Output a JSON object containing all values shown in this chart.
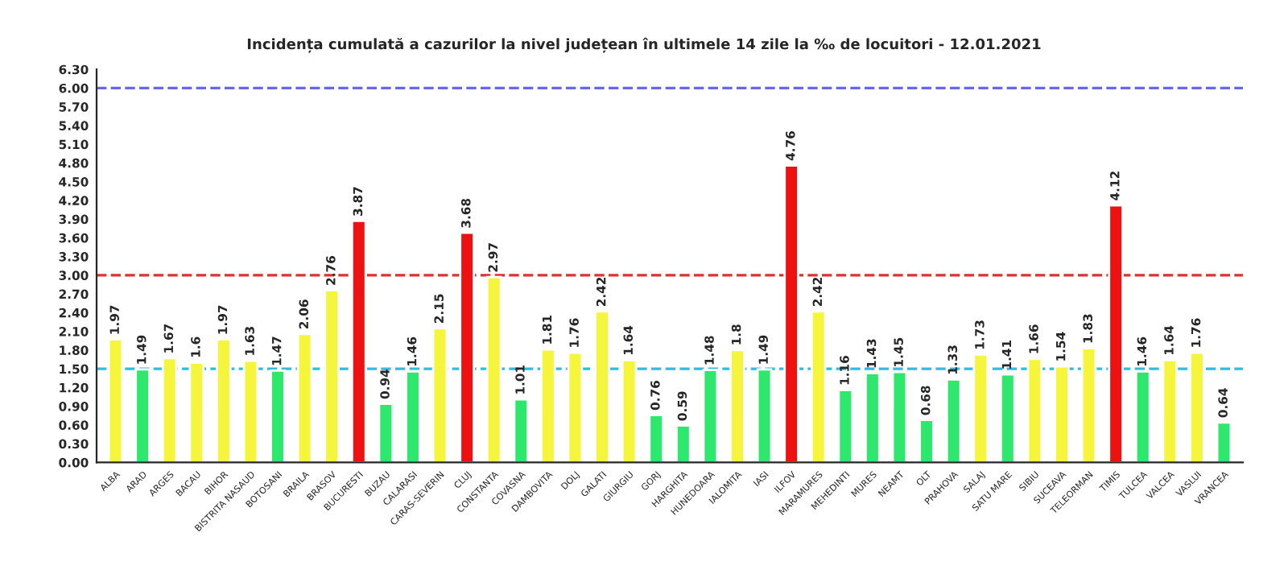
{
  "chart_data": {
    "type": "bar",
    "title": "Incidența cumulată a cazurilor la nivel județean în ultimele 14 zile la ‰ de locuitori - 12.01.2021",
    "categories": [
      "ALBA",
      "ARAD",
      "ARGES",
      "BACAU",
      "BIHOR",
      "BISTRITA NASAUD",
      "BOTOSANI",
      "BRAILA",
      "BRASOV",
      "BUCURESTI",
      "BUZAU",
      "CALARASI",
      "CARAS-SEVERIN",
      "CLUJ",
      "CONSTANTA",
      "COVASNA",
      "DAMBOVITA",
      "DOLJ",
      "GALATI",
      "GIURGIU",
      "GORJ",
      "HARGHITA",
      "HUNEDOARA",
      "IALOMITA",
      "IASI",
      "ILFOV",
      "MARAMURES",
      "MEHEDINTI",
      "MURES",
      "NEAMT",
      "OLT",
      "PRAHOVA",
      "SALAJ",
      "SATU MARE",
      "SIBIU",
      "SUCEAVA",
      "TELEORMAN",
      "TIMIS",
      "TULCEA",
      "VALCEA",
      "VASLUI",
      "VRANCEA"
    ],
    "values": [
      1.97,
      1.49,
      1.67,
      1.6,
      1.97,
      1.63,
      1.47,
      2.06,
      2.76,
      3.87,
      0.94,
      1.46,
      2.15,
      3.68,
      2.97,
      1.01,
      1.81,
      1.76,
      2.42,
      1.64,
      0.76,
      0.59,
      1.48,
      1.8,
      1.49,
      4.76,
      2.42,
      1.16,
      1.43,
      1.45,
      0.68,
      1.33,
      1.73,
      1.41,
      1.66,
      1.54,
      1.83,
      4.12,
      1.46,
      1.64,
      1.76,
      0.64
    ],
    "colors": [
      "#f5f53c",
      "#2ee86e",
      "#f5f53c",
      "#f5f53c",
      "#f5f53c",
      "#f5f53c",
      "#2ee86e",
      "#f5f53c",
      "#f5f53c",
      "#ee1111",
      "#2ee86e",
      "#2ee86e",
      "#f5f53c",
      "#ee1111",
      "#f5f53c",
      "#2ee86e",
      "#f5f53c",
      "#f5f53c",
      "#f5f53c",
      "#f5f53c",
      "#2ee86e",
      "#2ee86e",
      "#2ee86e",
      "#f5f53c",
      "#2ee86e",
      "#ee1111",
      "#f5f53c",
      "#2ee86e",
      "#2ee86e",
      "#2ee86e",
      "#2ee86e",
      "#2ee86e",
      "#f5f53c",
      "#2ee86e",
      "#f5f53c",
      "#f5f53c",
      "#f5f53c",
      "#ee1111",
      "#2ee86e",
      "#f5f53c",
      "#f5f53c",
      "#2ee86e"
    ],
    "ylim": [
      0,
      6.3
    ],
    "yticks": [
      {
        "value": 0,
        "label": "0.00"
      },
      {
        "value": 0.3,
        "label": "0.30"
      },
      {
        "value": 0.6,
        "label": "0.60"
      },
      {
        "value": 0.9,
        "label": "0.90"
      },
      {
        "value": 1.2,
        "label": "1.20"
      },
      {
        "value": 1.5,
        "label": "1.50"
      },
      {
        "value": 1.8,
        "label": "1.80"
      },
      {
        "value": 2.1,
        "label": "2.10"
      },
      {
        "value": 2.4,
        "label": "2.40"
      },
      {
        "value": 2.7,
        "label": "2.70"
      },
      {
        "value": 3.0,
        "label": "3.00"
      },
      {
        "value": 3.3,
        "label": "3.30"
      },
      {
        "value": 3.6,
        "label": "3.60"
      },
      {
        "value": 3.9,
        "label": "3.90"
      },
      {
        "value": 4.2,
        "label": "4.20"
      },
      {
        "value": 4.5,
        "label": "4.50"
      },
      {
        "value": 4.8,
        "label": "4.80"
      },
      {
        "value": 5.1,
        "label": "5.10"
      },
      {
        "value": 5.4,
        "label": "5.40"
      },
      {
        "value": 5.7,
        "label": "5.70"
      },
      {
        "value": 6.0,
        "label": "6.00"
      },
      {
        "value": 6.3,
        "label": "6.30"
      }
    ],
    "ref_lines": [
      {
        "axis": "y",
        "value": 6.0,
        "color": "#6666ee",
        "line_style": "dashed"
      },
      {
        "axis": "y",
        "value": 3.0,
        "color": "#e03030",
        "line_style": "dashed"
      },
      {
        "axis": "y",
        "value": 1.5,
        "color": "#33bbdd",
        "line_style": "dashed"
      }
    ],
    "data_labels": true,
    "grid": false,
    "legend": false
  }
}
